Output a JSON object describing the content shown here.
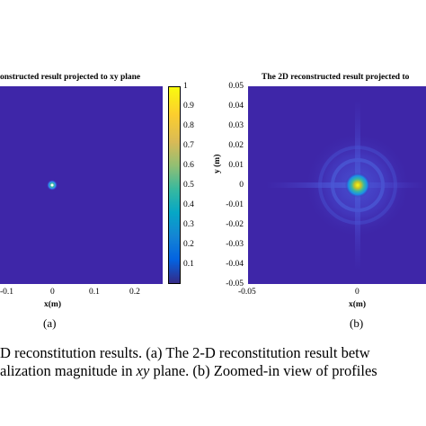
{
  "chart_data": [
    {
      "type": "heatmap",
      "title": "onstructed result projected to xy plane",
      "xlabel": "x(m)",
      "ylabel": "",
      "x_ticks": [
        "-0.1",
        "0",
        "0.1",
        "0.2"
      ],
      "colorbar_ticks": [
        "1",
        "0.9",
        "0.8",
        "0.7",
        "0.6",
        "0.5",
        "0.4",
        "0.3",
        "0.2",
        "0.1"
      ],
      "colorbar_range": [
        0,
        1
      ],
      "peak": {
        "x": 0,
        "y": 0,
        "value": 1
      },
      "background_color": "#3e26a8",
      "colormap": "parula",
      "sub_label": "(a)"
    },
    {
      "type": "heatmap",
      "title": "The 2D reconstructed result projected to",
      "xlabel": "x(m)",
      "ylabel": "y (m)",
      "x_ticks": [
        "-0.05",
        "0"
      ],
      "y_ticks": [
        "0.05",
        "0.04",
        "0.03",
        "0.02",
        "0.01",
        "0",
        "-0.01",
        "-0.02",
        "-0.03",
        "-0.04",
        "-0.05"
      ],
      "xlim": [
        -0.05,
        0.05
      ],
      "ylim": [
        -0.05,
        0.05
      ],
      "peak": {
        "x": 0,
        "y": 0,
        "value": 1
      },
      "background_color": "#3e26a8",
      "colormap": "parula",
      "sub_label": "(b)"
    }
  ],
  "caption": {
    "line1": "D reconstitution results. (a) The 2-D reconstitution result betw",
    "line2_pre": "alization magnitude in ",
    "line2_math": "xy",
    "line2_post": " plane. (b) Zoomed-in view of profiles"
  }
}
